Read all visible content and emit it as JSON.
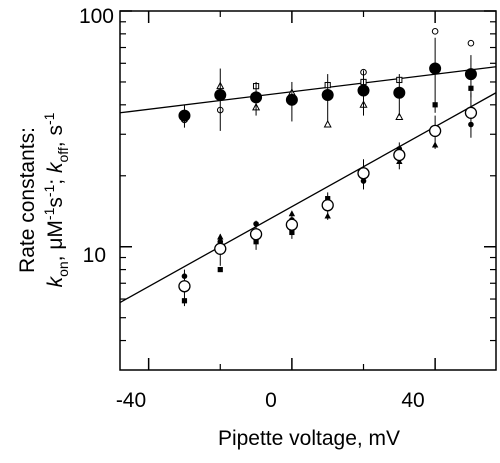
{
  "chart_data": {
    "type": "scatter",
    "xlabel": "Pipette voltage, mV",
    "ylabel_line1": "Rate constants:",
    "ylabel_line2": {
      "k": "k",
      "on_sub": "on",
      "mid": ", μM",
      "sup1": "-1",
      "s": "s",
      "sup2": "-1",
      "sep": "; ",
      "k2": "k",
      "off_sub": "off",
      "s2": ", s",
      "sup3": "-1"
    },
    "xlim": [
      -48,
      57
    ],
    "ylim": [
      3.0,
      100
    ],
    "y_scale": "log",
    "x_ticks": [
      -40,
      0,
      40
    ],
    "x_tick_labels": [
      "-40",
      "0",
      "40"
    ],
    "y_ticks": [
      10,
      100
    ],
    "y_tick_labels": [
      "10",
      "100"
    ],
    "y_minor_ticks": [
      4,
      5,
      6,
      7,
      8,
      9,
      20,
      30,
      40,
      50,
      60,
      70,
      80,
      90
    ],
    "x_minor_ticks": [
      -20,
      20
    ],
    "fit_lines": [
      {
        "name": "koff_fit",
        "x": [
          -48,
          57
        ],
        "y": [
          37.0,
          58.0
        ]
      },
      {
        "name": "kon_fit",
        "x": [
          -48,
          57
        ],
        "y": [
          5.8,
          45.0
        ]
      }
    ],
    "series": [
      {
        "marker": "filled-circle-large",
        "points": [
          {
            "x": -30,
            "y": 36,
            "err": 4
          },
          {
            "x": -20,
            "y": 44,
            "err": 13
          },
          {
            "x": -10,
            "y": 43,
            "err": 7
          },
          {
            "x": 0,
            "y": 42,
            "err": 8
          },
          {
            "x": 10,
            "y": 44,
            "err": 10
          },
          {
            "x": 20,
            "y": 46,
            "err": 10
          },
          {
            "x": 30,
            "y": 45,
            "err": 9
          },
          {
            "x": 40,
            "y": 57,
            "err": 20
          },
          {
            "x": 50,
            "y": 54,
            "err": 11
          }
        ]
      },
      {
        "marker": "open-circle-large",
        "points": [
          {
            "x": -30,
            "y": 6.8,
            "err": 1.2
          },
          {
            "x": -20,
            "y": 9.8,
            "err": 1.5
          },
          {
            "x": -10,
            "y": 11.3,
            "err": 1.6
          },
          {
            "x": 0,
            "y": 12.4,
            "err": 1.6
          },
          {
            "x": 10,
            "y": 15.0,
            "err": 2.0
          },
          {
            "x": 20,
            "y": 20.5,
            "err": 3.0
          },
          {
            "x": 30,
            "y": 24.5,
            "err": 3.2
          },
          {
            "x": 40,
            "y": 31.0,
            "err": 5.0
          },
          {
            "x": 50,
            "y": 37.0,
            "err": 8.0
          }
        ]
      },
      {
        "marker": "small-open-circle",
        "points": [
          {
            "x": -30,
            "y": 34.5
          },
          {
            "x": -20,
            "y": 38.0
          },
          {
            "x": 20,
            "y": 55.0
          },
          {
            "x": 40,
            "y": 82.0
          },
          {
            "x": 50,
            "y": 73.0
          }
        ]
      },
      {
        "marker": "small-open-square",
        "points": [
          {
            "x": -30,
            "y": 35.0
          },
          {
            "x": -10,
            "y": 48.0
          },
          {
            "x": 0,
            "y": 43.0
          },
          {
            "x": 10,
            "y": 48.5
          },
          {
            "x": 20,
            "y": 50.0
          },
          {
            "x": 30,
            "y": 51.0
          }
        ]
      },
      {
        "marker": "small-open-triangle",
        "points": [
          {
            "x": -20,
            "y": 48.0
          },
          {
            "x": -10,
            "y": 39.0
          },
          {
            "x": 0,
            "y": 45.0
          },
          {
            "x": 10,
            "y": 33.0
          },
          {
            "x": 20,
            "y": 40.0
          },
          {
            "x": 30,
            "y": 35.5
          }
        ]
      },
      {
        "marker": "small-filled-circle",
        "points": [
          {
            "x": -30,
            "y": 7.5
          },
          {
            "x": -20,
            "y": 10.5
          },
          {
            "x": -10,
            "y": 12.5
          },
          {
            "x": 0,
            "y": 13.0
          },
          {
            "x": 10,
            "y": 15.5
          },
          {
            "x": 20,
            "y": 19.0
          },
          {
            "x": 30,
            "y": 26.0
          },
          {
            "x": 40,
            "y": 30.0
          },
          {
            "x": 50,
            "y": 33.0
          }
        ]
      },
      {
        "marker": "small-filled-square",
        "points": [
          {
            "x": -30,
            "y": 5.9
          },
          {
            "x": -20,
            "y": 8.0
          },
          {
            "x": -10,
            "y": 10.5
          },
          {
            "x": 0,
            "y": 11.5
          },
          {
            "x": 10,
            "y": 16.0
          },
          {
            "x": 20,
            "y": 20.5
          },
          {
            "x": 30,
            "y": 25.5
          },
          {
            "x": 40,
            "y": 40.0
          },
          {
            "x": 50,
            "y": 47.0
          }
        ]
      },
      {
        "marker": "small-filled-triangle",
        "points": [
          {
            "x": -20,
            "y": 11.0
          },
          {
            "x": -10,
            "y": 11.0
          },
          {
            "x": 0,
            "y": 13.8
          },
          {
            "x": 10,
            "y": 13.5
          },
          {
            "x": 20,
            "y": 21.0
          },
          {
            "x": 30,
            "y": 23.0
          },
          {
            "x": 40,
            "y": 27.0
          },
          {
            "x": 50,
            "y": 37.0
          }
        ]
      }
    ]
  }
}
